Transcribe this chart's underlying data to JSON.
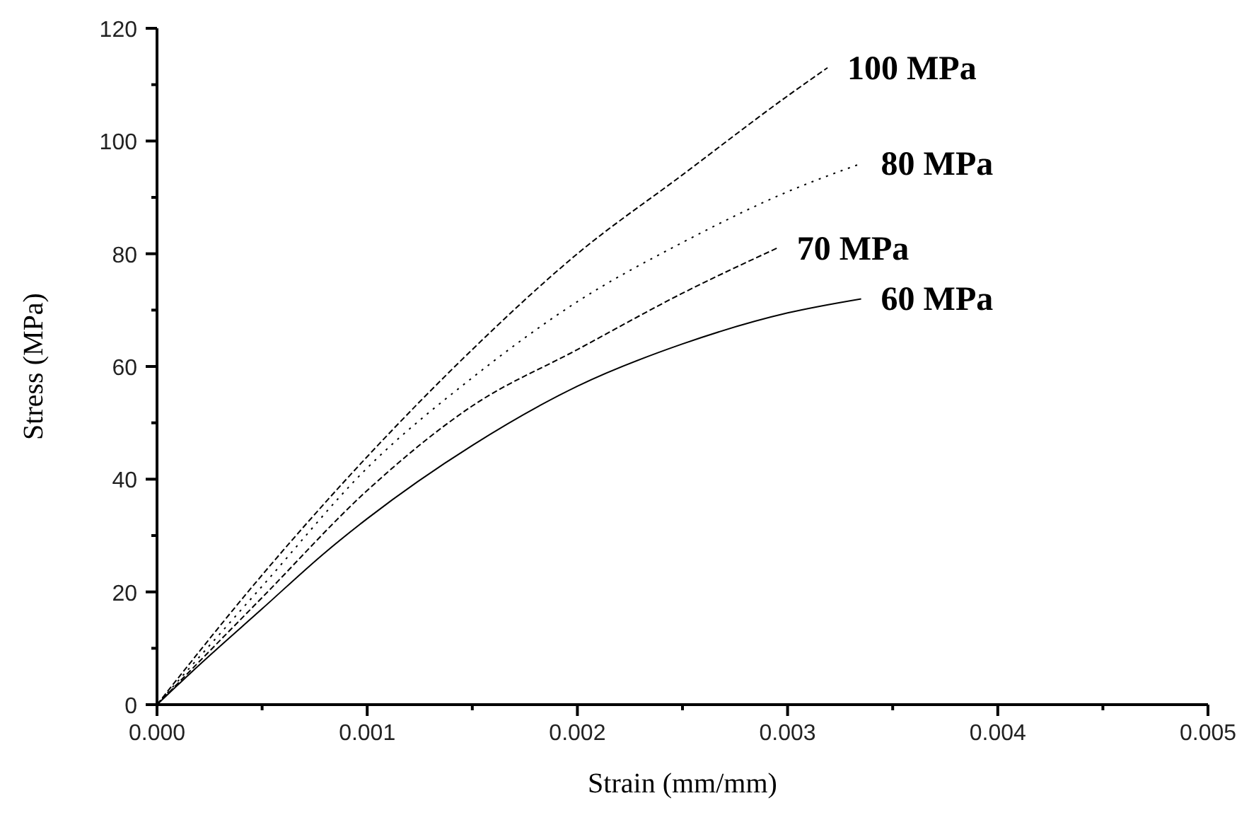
{
  "chart_data": {
    "type": "line",
    "xlabel": "Strain (mm/mm)",
    "ylabel": "Stress (MPa)",
    "xlim": [
      0,
      0.005
    ],
    "ylim": [
      0,
      120
    ],
    "xticks": [
      {
        "value": 0,
        "label": "0.000"
      },
      {
        "value": 0.0005,
        "label": null
      },
      {
        "value": 0.001,
        "label": "0.001"
      },
      {
        "value": 0.0015,
        "label": null
      },
      {
        "value": 0.002,
        "label": "0.002"
      },
      {
        "value": 0.0025,
        "label": null
      },
      {
        "value": 0.003,
        "label": "0.003"
      },
      {
        "value": 0.0035,
        "label": null
      },
      {
        "value": 0.004,
        "label": "0.004"
      },
      {
        "value": 0.0045,
        "label": null
      },
      {
        "value": 0.005,
        "label": "0.005"
      }
    ],
    "yticks": [
      0,
      {
        "value": 10,
        "label": null
      },
      20,
      {
        "value": 30,
        "label": null
      },
      40,
      {
        "value": 50,
        "label": null
      },
      60,
      {
        "value": 70,
        "label": null
      },
      80,
      {
        "value": 90,
        "label": null
      },
      100,
      {
        "value": 110,
        "label": null
      },
      120
    ],
    "marker": "none",
    "series": [
      {
        "name": "100 MPa",
        "color": "#000000",
        "line_style": "dashed",
        "x": [
          0,
          0.0005,
          0.001,
          0.0015,
          0.002,
          0.0025,
          0.003,
          0.00319
        ],
        "values": [
          0,
          23,
          44,
          63,
          80,
          94,
          108,
          113
        ]
      },
      {
        "name": "80 MPa",
        "color": "#000000",
        "line_style": "dotted",
        "x": [
          0,
          0.0005,
          0.001,
          0.0015,
          0.002,
          0.0025,
          0.003,
          0.00335
        ],
        "values": [
          0,
          21,
          42,
          58,
          71.5,
          82,
          91,
          96
        ]
      },
      {
        "name": "70 MPa",
        "color": "#000000",
        "line_style": "dashed",
        "x": [
          0,
          0.0005,
          0.001,
          0.0015,
          0.002,
          0.0025,
          0.00295
        ],
        "values": [
          0,
          19,
          38,
          53,
          63,
          73,
          81
        ]
      },
      {
        "name": "60 MPa",
        "color": "#000000",
        "line_style": "solid",
        "x": [
          0,
          0.0002,
          0.0005,
          0.0008,
          0.001,
          0.0015,
          0.002,
          0.0025,
          0.003,
          0.00335
        ],
        "values": [
          0,
          7,
          17,
          27,
          33,
          46,
          56.5,
          64,
          69.5,
          72
        ]
      }
    ]
  }
}
